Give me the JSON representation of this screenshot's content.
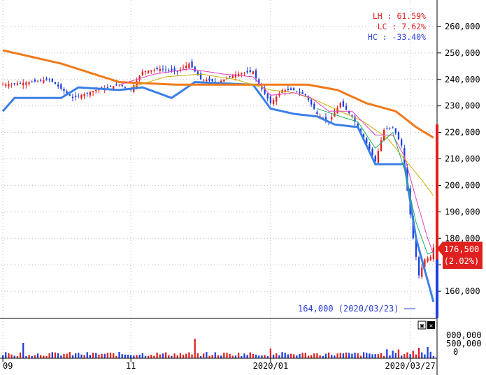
{
  "stats": [
    {
      "label": "LH : 61.59%",
      "color": "#e0201e"
    },
    {
      "label": "LC : 7.62%",
      "color": "#e0201e"
    },
    {
      "label": "HC : -33.40%",
      "color": "#2b3fd6"
    }
  ],
  "current_price": {
    "price_text": "176,500",
    "change_text": "(2.02%)",
    "value": 176500,
    "color": "#e0201e"
  },
  "low_annotation": {
    "text": "164,000 (2020/03/23)",
    "value": 164000,
    "color": "#2b3fd6"
  },
  "volume_axis_labels": [
    "000,000",
    "500,000",
    "0"
  ],
  "volume_buttons": [
    "▣",
    "✕"
  ],
  "colors": {
    "up": "#e0201e",
    "down": "#1f3fe0",
    "ma_long": "#f07a1a",
    "ma_mid": "#cdb000",
    "ma_short": "#e040c0",
    "ma_fast": "#20b060",
    "lowline": "#3b7fe8",
    "grid": "#bbbbbb"
  },
  "chart_data": {
    "type": "candlestick",
    "ylim": [
      150000,
      270000
    ],
    "yticks": [
      160000,
      170000,
      180000,
      190000,
      200000,
      210000,
      220000,
      230000,
      240000,
      250000,
      260000
    ],
    "ytick_labels": [
      "160,000",
      "",
      "180,000",
      "190,000",
      "200,000",
      "210,000",
      "220,000",
      "230,000",
      "240,000",
      "250,000",
      "260,000"
    ],
    "xtick_labels": [
      "09",
      "11",
      "2020/01",
      "2020/03/27"
    ],
    "xtick_index": [
      0,
      44,
      92,
      140
    ],
    "grid": true,
    "price_keypoints": [
      [
        0,
        238000
      ],
      [
        10,
        239000
      ],
      [
        16,
        240000
      ],
      [
        24,
        233000
      ],
      [
        32,
        236000
      ],
      [
        40,
        238000
      ],
      [
        44,
        236000
      ],
      [
        48,
        243000
      ],
      [
        54,
        244000
      ],
      [
        60,
        243000
      ],
      [
        64,
        246000
      ],
      [
        68,
        240000
      ],
      [
        74,
        239000
      ],
      [
        80,
        242000
      ],
      [
        86,
        243000
      ],
      [
        88,
        238000
      ],
      [
        92,
        231000
      ],
      [
        96,
        236000
      ],
      [
        100,
        236000
      ],
      [
        104,
        234000
      ],
      [
        108,
        227000
      ],
      [
        112,
        224000
      ],
      [
        116,
        231000
      ],
      [
        120,
        226000
      ],
      [
        124,
        218000
      ],
      [
        128,
        209000
      ],
      [
        131,
        221000
      ],
      [
        134,
        222000
      ],
      [
        137,
        215000
      ],
      [
        139,
        198000
      ],
      [
        141,
        180000
      ],
      [
        143,
        166000
      ],
      [
        145,
        172000
      ],
      [
        147,
        173000
      ],
      [
        148,
        176500
      ]
    ],
    "ma_long_keypoints": [
      [
        0,
        251000
      ],
      [
        20,
        246000
      ],
      [
        40,
        239000
      ],
      [
        60,
        238000
      ],
      [
        80,
        238000
      ],
      [
        92,
        238000
      ],
      [
        105,
        238000
      ],
      [
        115,
        236000
      ],
      [
        125,
        231000
      ],
      [
        135,
        228000
      ],
      [
        142,
        222000
      ],
      [
        148,
        218000
      ]
    ],
    "ma_mid_keypoints": [
      [
        44,
        237000
      ],
      [
        56,
        241000
      ],
      [
        68,
        242000
      ],
      [
        80,
        240000
      ],
      [
        92,
        236000
      ],
      [
        100,
        235000
      ],
      [
        108,
        232000
      ],
      [
        116,
        228000
      ],
      [
        124,
        224000
      ],
      [
        132,
        218000
      ],
      [
        138,
        210000
      ],
      [
        144,
        202000
      ],
      [
        148,
        196000
      ]
    ],
    "ma_short_keypoints": [
      [
        40,
        238000
      ],
      [
        52,
        242000
      ],
      [
        64,
        244000
      ],
      [
        76,
        242000
      ],
      [
        86,
        241000
      ],
      [
        92,
        234000
      ],
      [
        100,
        235000
      ],
      [
        106,
        233000
      ],
      [
        112,
        228000
      ],
      [
        120,
        228000
      ],
      [
        128,
        219000
      ],
      [
        134,
        219000
      ],
      [
        138,
        211000
      ],
      [
        142,
        195000
      ],
      [
        146,
        180000
      ],
      [
        148,
        174000
      ]
    ],
    "ma_fast_keypoints": [
      [
        108,
        229000
      ],
      [
        116,
        226000
      ],
      [
        122,
        224000
      ],
      [
        128,
        214000
      ],
      [
        134,
        220000
      ],
      [
        138,
        206000
      ],
      [
        142,
        186000
      ],
      [
        146,
        174000
      ],
      [
        148,
        175000
      ]
    ],
    "lowline_keypoints": [
      [
        0,
        228000
      ],
      [
        4,
        233000
      ],
      [
        20,
        233000
      ],
      [
        26,
        237000
      ],
      [
        40,
        236000
      ],
      [
        48,
        237000
      ],
      [
        58,
        233000
      ],
      [
        66,
        239000
      ],
      [
        86,
        238000
      ],
      [
        92,
        229000
      ],
      [
        100,
        227000
      ],
      [
        108,
        226000
      ],
      [
        114,
        223000
      ],
      [
        122,
        222000
      ],
      [
        128,
        208000
      ],
      [
        134,
        208000
      ],
      [
        138,
        208000
      ],
      [
        142,
        180000
      ],
      [
        146,
        164000
      ],
      [
        148,
        156000
      ]
    ]
  }
}
